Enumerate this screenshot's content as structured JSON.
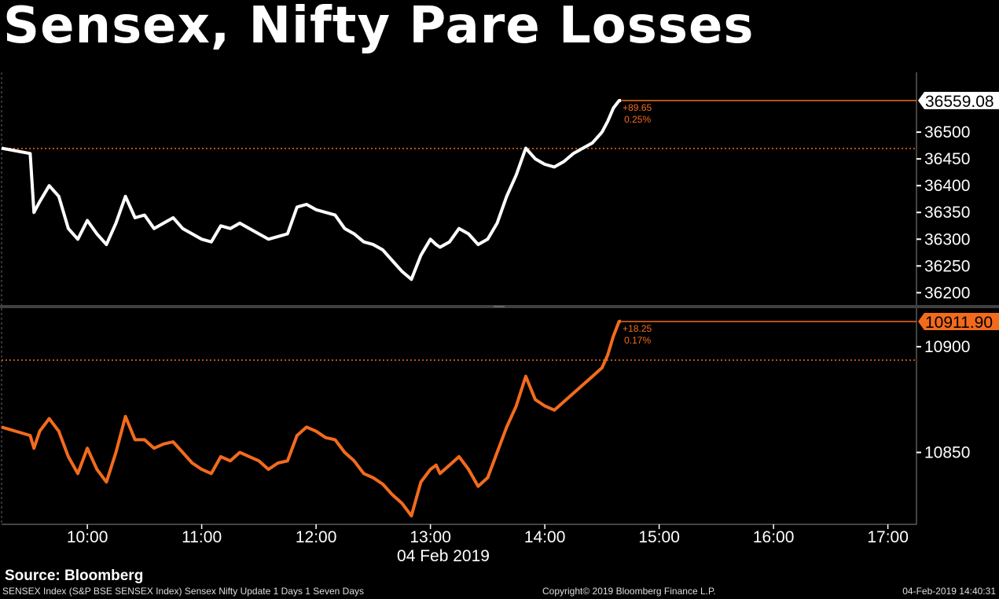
{
  "title": "Sensex, Nifty Pare Losses",
  "source": "Source: Bloomberg",
  "footer": {
    "left": "SENSEX Index (S&P BSE SENSEX Index) Sensex Nifty Update 1 Days 1 Seven Days",
    "middle": "Copyright© 2019 Bloomberg Finance L.P.",
    "right": "04-Feb-2019 14:40:31"
  },
  "colors": {
    "background": "#000000",
    "sensex": "#ffffff",
    "nifty": "#f26b1d",
    "marker": "#f26b1d",
    "divider": "#404040"
  },
  "chart_data": {
    "type": "line",
    "x_axis": {
      "ticks": [
        "10:00",
        "11:00",
        "12:00",
        "13:00",
        "14:00",
        "15:00",
        "16:00",
        "17:00"
      ],
      "date_label": "04 Feb 2019",
      "range": [
        "09:15",
        "17:15"
      ]
    },
    "panels": [
      {
        "name": "SENSEX",
        "color": "#ffffff",
        "y_ticks": [
          36200,
          36250,
          36300,
          36350,
          36400,
          36450,
          36500
        ],
        "ylim": [
          36180,
          36600
        ],
        "last_value_label": "36559.08",
        "last_value": 36559.08,
        "reference_value": 36469.43,
        "change": "+89.65",
        "change_pct": "0.25%",
        "x": [
          "09:15",
          "09:30",
          "09:32",
          "09:35",
          "09:40",
          "09:45",
          "09:50",
          "09:55",
          "10:00",
          "10:05",
          "10:10",
          "10:15",
          "10:20",
          "10:25",
          "10:30",
          "10:35",
          "10:40",
          "10:45",
          "10:50",
          "10:55",
          "11:00",
          "11:05",
          "11:10",
          "11:15",
          "11:20",
          "11:25",
          "11:30",
          "11:35",
          "11:40",
          "11:45",
          "11:50",
          "11:55",
          "12:00",
          "12:05",
          "12:10",
          "12:15",
          "12:20",
          "12:25",
          "12:30",
          "12:35",
          "12:40",
          "12:45",
          "12:50",
          "12:55",
          "13:00",
          "13:03",
          "13:05",
          "13:10",
          "13:15",
          "13:20",
          "13:25",
          "13:30",
          "13:35",
          "13:40",
          "13:45",
          "13:50",
          "13:55",
          "14:00",
          "14:05",
          "14:10",
          "14:15",
          "14:20",
          "14:25",
          "14:30",
          "14:33",
          "14:36",
          "14:39",
          "14:40"
        ],
        "values": [
          36470,
          36460,
          36350,
          36370,
          36400,
          36380,
          36320,
          36300,
          36335,
          36310,
          36290,
          36330,
          36380,
          36340,
          36345,
          36320,
          36330,
          36340,
          36320,
          36310,
          36300,
          36295,
          36325,
          36320,
          36330,
          36320,
          36310,
          36300,
          36305,
          36310,
          36360,
          36365,
          36355,
          36350,
          36345,
          36320,
          36310,
          36295,
          36290,
          36280,
          36260,
          36240,
          36225,
          36270,
          36300,
          36290,
          36285,
          36295,
          36320,
          36310,
          36290,
          36300,
          36330,
          36380,
          36420,
          36470,
          36450,
          36440,
          36435,
          36445,
          36460,
          36470,
          36480,
          36500,
          36520,
          36545,
          36559,
          36559
        ]
      },
      {
        "name": "NIFTY",
        "color": "#f26b1d",
        "y_ticks": [
          10850,
          10900
        ],
        "ylim": [
          10816,
          10916
        ],
        "last_value_label": "10911.90",
        "last_value": 10911.9,
        "reference_value": 10893.65,
        "change": "+18.25",
        "change_pct": "0.17%",
        "x": [
          "09:15",
          "09:30",
          "09:32",
          "09:35",
          "09:40",
          "09:45",
          "09:50",
          "09:55",
          "10:00",
          "10:05",
          "10:10",
          "10:15",
          "10:20",
          "10:25",
          "10:30",
          "10:35",
          "10:40",
          "10:45",
          "10:50",
          "10:55",
          "11:00",
          "11:05",
          "11:10",
          "11:15",
          "11:20",
          "11:25",
          "11:30",
          "11:35",
          "11:40",
          "11:45",
          "11:50",
          "11:55",
          "12:00",
          "12:05",
          "12:10",
          "12:15",
          "12:20",
          "12:25",
          "12:30",
          "12:35",
          "12:40",
          "12:45",
          "12:50",
          "12:55",
          "13:00",
          "13:03",
          "13:05",
          "13:10",
          "13:15",
          "13:20",
          "13:25",
          "13:30",
          "13:35",
          "13:40",
          "13:45",
          "13:50",
          "13:55",
          "14:00",
          "14:05",
          "14:10",
          "14:15",
          "14:20",
          "14:25",
          "14:30",
          "14:33",
          "14:36",
          "14:39",
          "14:40"
        ],
        "values": [
          10862,
          10858,
          10852,
          10860,
          10866,
          10860,
          10848,
          10840,
          10852,
          10842,
          10836,
          10850,
          10867,
          10856,
          10856,
          10852,
          10854,
          10855,
          10850,
          10845,
          10842,
          10840,
          10848,
          10846,
          10850,
          10848,
          10846,
          10842,
          10845,
          10846,
          10858,
          10862,
          10860,
          10857,
          10856,
          10850,
          10846,
          10840,
          10838,
          10835,
          10830,
          10826,
          10820,
          10836,
          10842,
          10844,
          10840,
          10844,
          10848,
          10842,
          10834,
          10838,
          10850,
          10862,
          10872,
          10886,
          10875,
          10872,
          10870,
          10874,
          10878,
          10882,
          10886,
          10890,
          10896,
          10905,
          10912,
          10912
        ]
      }
    ]
  }
}
